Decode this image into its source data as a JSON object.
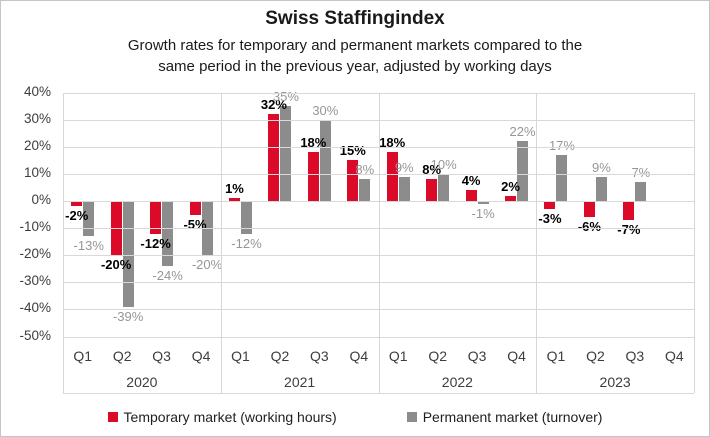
{
  "header": {
    "title": "Swiss Staffingindex",
    "subtitle_line1": "Growth rates for temporary and permanent markets compared to the",
    "subtitle_line2": "same period in the previous year, adjusted by working days"
  },
  "legend": {
    "items": [
      {
        "label": "Temporary market (working hours)",
        "color": "#da0a28"
      },
      {
        "label": "Permanent market (turnover)",
        "color": "#8c8c8c"
      }
    ]
  },
  "chart_data": {
    "type": "bar",
    "title": "Swiss Staffingindex",
    "subtitle": "Growth rates for temporary and permanent markets compared to the same period in the previous year, adjusted by working days",
    "xlabel": "",
    "ylabel": "",
    "ylim": [
      -50,
      40
    ],
    "y_ticks": [
      40,
      30,
      20,
      10,
      0,
      -10,
      -20,
      -30,
      -40,
      -50
    ],
    "y_tick_suffix": "%",
    "grid": true,
    "legend_position": "bottom",
    "x_groups": [
      {
        "label": "2020",
        "quarters": [
          "Q1",
          "Q2",
          "Q3",
          "Q4"
        ]
      },
      {
        "label": "2021",
        "quarters": [
          "Q1",
          "Q2",
          "Q3",
          "Q4"
        ]
      },
      {
        "label": "2022",
        "quarters": [
          "Q1",
          "Q2",
          "Q3",
          "Q4"
        ]
      },
      {
        "label": "2023",
        "quarters": [
          "Q1",
          "Q2",
          "Q3",
          "Q4"
        ]
      }
    ],
    "series": [
      {
        "name": "Temporary market (working hours)",
        "color": "#da0a28",
        "label_style": "bold-black",
        "values": [
          -2,
          -20,
          -12,
          -5,
          1,
          32,
          18,
          15,
          18,
          8,
          4,
          2,
          -3,
          -6,
          -7,
          null
        ]
      },
      {
        "name": "Permanent market (turnover)",
        "color": "#8c8c8c",
        "label_style": "gray",
        "values": [
          -13,
          -39,
          -24,
          -20,
          -12,
          35,
          30,
          8,
          9,
          10,
          -1,
          22,
          17,
          9,
          7,
          null
        ]
      }
    ],
    "colors": {
      "temporary": "#da0a28",
      "permanent": "#8c8c8c",
      "gridline": "#d9d9d9",
      "axis_text": "#3d3d3d",
      "perm_label": "#969696"
    }
  }
}
